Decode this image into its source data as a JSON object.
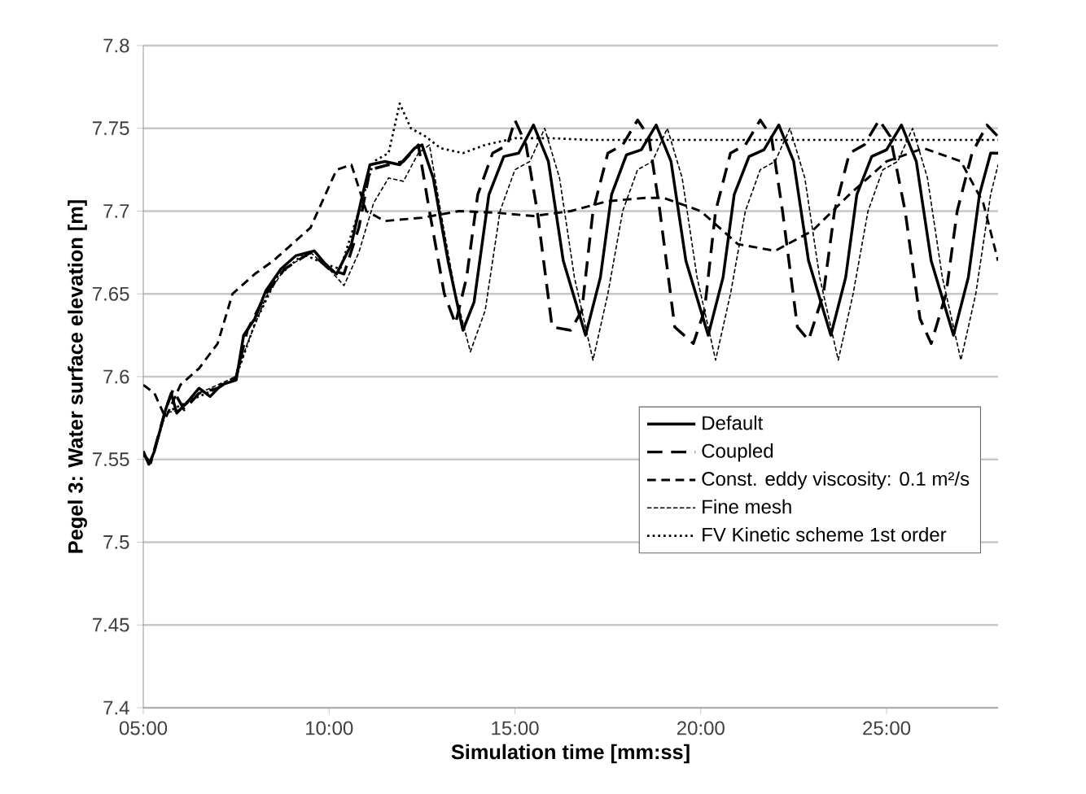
{
  "chart_data": {
    "type": "line",
    "xlabel": "Simulation time [mm:ss]",
    "ylabel": "Pegel 3: Water surface elevation [m]",
    "xlim": [
      5,
      28
    ],
    "ylim": [
      7.4,
      7.8
    ],
    "xticks": [
      {
        "value": 5,
        "label": "05:00"
      },
      {
        "value": 10,
        "label": "10:00"
      },
      {
        "value": 15,
        "label": "15:00"
      },
      {
        "value": 20,
        "label": "20:00"
      },
      {
        "value": 25,
        "label": "25:00"
      }
    ],
    "yticks": [
      7.4,
      7.45,
      7.5,
      7.55,
      7.6,
      7.65,
      7.7,
      7.75,
      7.8
    ],
    "grid": "y",
    "legend": "bottom right",
    "marker": "none",
    "series": [
      {
        "name": "Default",
        "color": "#000000",
        "line_style": "solid",
        "x": [
          5.0,
          5.15,
          5.3,
          5.6,
          5.75,
          5.9,
          6.2,
          6.5,
          6.8,
          7.1,
          7.5,
          7.7,
          8.0,
          8.3,
          8.7,
          9.1,
          9.6,
          9.9,
          10.2,
          10.6,
          10.9,
          11.1,
          11.5,
          11.9,
          12.3,
          12.5,
          12.8,
          13.2,
          13.6,
          13.9,
          14.3,
          14.7,
          15.1,
          15.5,
          15.9,
          16.3,
          16.9,
          17.3,
          17.6,
          18.0,
          18.4,
          18.8,
          19.2,
          19.6,
          20.2,
          20.6,
          20.9,
          21.3,
          21.7,
          22.1,
          22.5,
          22.9,
          23.5,
          23.9,
          24.2,
          24.6,
          25.0,
          25.4,
          25.8,
          26.2,
          26.8,
          27.2,
          27.5,
          27.8,
          28.0
        ],
        "values": [
          7.555,
          7.547,
          7.555,
          7.58,
          7.59,
          7.578,
          7.585,
          7.593,
          7.588,
          7.595,
          7.598,
          7.625,
          7.635,
          7.652,
          7.665,
          7.673,
          7.676,
          7.668,
          7.662,
          7.68,
          7.71,
          7.728,
          7.73,
          7.728,
          7.738,
          7.74,
          7.72,
          7.67,
          7.628,
          7.645,
          7.71,
          7.733,
          7.735,
          7.752,
          7.73,
          7.67,
          7.625,
          7.66,
          7.71,
          7.734,
          7.737,
          7.752,
          7.73,
          7.67,
          7.625,
          7.66,
          7.71,
          7.733,
          7.737,
          7.752,
          7.73,
          7.67,
          7.625,
          7.66,
          7.71,
          7.733,
          7.737,
          7.752,
          7.73,
          7.67,
          7.625,
          7.66,
          7.71,
          7.735,
          7.735
        ]
      },
      {
        "name": "Coupled",
        "color": "#000000",
        "line_style": "dashed",
        "x": [
          5.0,
          5.2,
          5.6,
          5.8,
          6.1,
          6.5,
          7.0,
          7.5,
          7.8,
          8.3,
          8.8,
          9.5,
          10.0,
          10.4,
          10.8,
          11.1,
          11.6,
          12.0,
          12.4,
          12.7,
          13.1,
          13.4,
          13.7,
          14.0,
          14.4,
          14.8,
          15.0,
          15.3,
          15.6,
          16.0,
          16.5,
          16.8,
          17.1,
          17.5,
          17.9,
          18.3,
          18.6,
          18.9,
          19.3,
          19.8,
          20.1,
          20.4,
          20.8,
          21.2,
          21.6,
          21.9,
          22.2,
          22.6,
          22.9,
          23.3,
          23.6,
          24.0,
          24.4,
          24.8,
          25.1,
          25.5,
          25.9,
          26.2,
          26.6,
          26.9,
          27.3,
          27.7,
          28.0
        ],
        "values": [
          7.553,
          7.548,
          7.58,
          7.592,
          7.58,
          7.59,
          7.593,
          7.6,
          7.628,
          7.65,
          7.665,
          7.675,
          7.665,
          7.662,
          7.69,
          7.725,
          7.728,
          7.73,
          7.74,
          7.7,
          7.65,
          7.632,
          7.66,
          7.71,
          7.735,
          7.74,
          7.755,
          7.74,
          7.7,
          7.63,
          7.628,
          7.64,
          7.7,
          7.735,
          7.74,
          7.755,
          7.745,
          7.7,
          7.63,
          7.62,
          7.64,
          7.7,
          7.735,
          7.74,
          7.755,
          7.745,
          7.7,
          7.63,
          7.622,
          7.65,
          7.7,
          7.735,
          7.74,
          7.755,
          7.745,
          7.7,
          7.635,
          7.62,
          7.65,
          7.7,
          7.735,
          7.752,
          7.745
        ]
      },
      {
        "name": "Const. eddy viscosity: 0.1 m²/s",
        "color": "#000000",
        "line_style": "dashed",
        "x": [
          5.0,
          5.3,
          5.6,
          6.0,
          6.5,
          7.0,
          7.4,
          8.0,
          8.5,
          9.0,
          9.5,
          10.2,
          10.6,
          11.0,
          11.5,
          12.5,
          13.5,
          14.5,
          15.5,
          16.5,
          17.5,
          18.5,
          19.0,
          20.0,
          21.0,
          22.0,
          23.0,
          24.0,
          25.0,
          26.0,
          27.0,
          27.6,
          28.0
        ],
        "values": [
          7.595,
          7.59,
          7.575,
          7.595,
          7.605,
          7.62,
          7.65,
          7.662,
          7.67,
          7.68,
          7.69,
          7.725,
          7.728,
          7.7,
          7.694,
          7.696,
          7.7,
          7.699,
          7.697,
          7.7,
          7.706,
          7.708,
          7.708,
          7.7,
          7.68,
          7.676,
          7.688,
          7.71,
          7.73,
          7.738,
          7.73,
          7.705,
          7.67
        ]
      },
      {
        "name": "Fine mesh",
        "color": "#000000",
        "line_style": "dashed",
        "x": [
          5.0,
          5.2,
          5.6,
          6.0,
          6.5,
          7.0,
          7.5,
          7.8,
          8.3,
          8.8,
          9.5,
          10.0,
          10.4,
          10.8,
          11.2,
          11.6,
          12.0,
          12.4,
          12.7,
          13.0,
          13.4,
          13.8,
          14.2,
          14.6,
          15.0,
          15.4,
          15.8,
          16.2,
          16.6,
          17.1,
          17.5,
          17.9,
          18.3,
          18.7,
          19.1,
          19.5,
          19.9,
          20.4,
          20.8,
          21.2,
          21.6,
          22.0,
          22.4,
          22.8,
          23.2,
          23.7,
          24.1,
          24.5,
          24.9,
          25.3,
          25.7,
          26.1,
          26.5,
          27.0,
          27.4,
          27.8,
          28.0
        ],
        "values": [
          7.553,
          7.548,
          7.578,
          7.58,
          7.59,
          7.595,
          7.6,
          7.62,
          7.648,
          7.665,
          7.675,
          7.665,
          7.655,
          7.675,
          7.705,
          7.72,
          7.718,
          7.735,
          7.74,
          7.7,
          7.65,
          7.615,
          7.64,
          7.7,
          7.725,
          7.73,
          7.75,
          7.72,
          7.66,
          7.61,
          7.65,
          7.7,
          7.725,
          7.73,
          7.75,
          7.72,
          7.66,
          7.61,
          7.65,
          7.7,
          7.725,
          7.73,
          7.75,
          7.72,
          7.66,
          7.61,
          7.65,
          7.7,
          7.725,
          7.73,
          7.75,
          7.72,
          7.66,
          7.61,
          7.65,
          7.71,
          7.728
        ]
      },
      {
        "name": "FV Kinetic scheme 1st order",
        "color": "#000000",
        "line_style": "dotted",
        "x": [
          5.0,
          5.2,
          5.6,
          6.2,
          7.0,
          7.5,
          8.0,
          8.6,
          9.3,
          9.9,
          10.3,
          10.8,
          11.2,
          11.6,
          11.9,
          12.2,
          12.6,
          13.0,
          13.6,
          14.2,
          15.0,
          16.0,
          17.0,
          28.0
        ],
        "values": [
          7.553,
          7.548,
          7.578,
          7.585,
          7.593,
          7.6,
          7.632,
          7.66,
          7.674,
          7.668,
          7.665,
          7.7,
          7.73,
          7.735,
          7.765,
          7.75,
          7.745,
          7.738,
          7.735,
          7.74,
          7.744,
          7.744,
          7.743,
          7.743
        ]
      }
    ]
  }
}
